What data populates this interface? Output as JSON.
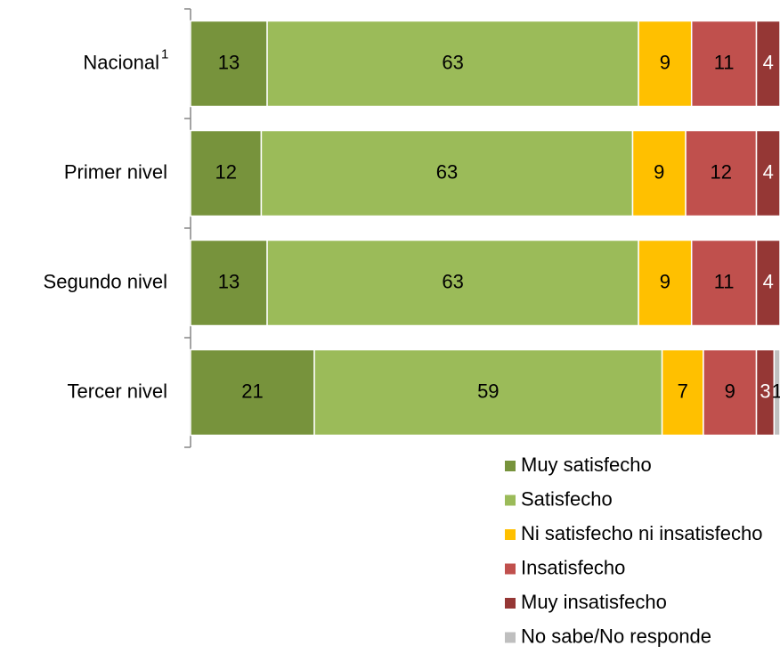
{
  "chart_data": {
    "type": "stacked_barh",
    "categories": [
      "Nacional",
      "Primer nivel",
      "Segundo nivel",
      "Tercer nivel"
    ],
    "category_footnotes": [
      "1",
      null,
      null,
      null
    ],
    "xlim": [
      0,
      100
    ],
    "legend": "bottom",
    "series": [
      {
        "name": "Muy satisfecho",
        "color": "#77933c",
        "label_color": "#000000",
        "values": [
          13,
          12,
          13,
          21
        ]
      },
      {
        "name": "Satisfecho",
        "color": "#9bbb59",
        "label_color": "#000000",
        "values": [
          63,
          63,
          63,
          59
        ]
      },
      {
        "name": "Ni satisfecho ni insatisfecho",
        "color": "#ffc000",
        "label_color": "#000000",
        "values": [
          9,
          9,
          9,
          7
        ]
      },
      {
        "name": "Insatisfecho",
        "color": "#c0504d",
        "label_color": "#000000",
        "values": [
          11,
          12,
          11,
          9
        ]
      },
      {
        "name": "Muy insatisfecho",
        "color": "#953735",
        "label_color": "#ffffff",
        "values": [
          4,
          4,
          4,
          3
        ]
      },
      {
        "name": "No sabe/No responde",
        "color": "#bfbfbf",
        "label_color": "#000000",
        "values": [
          null,
          null,
          null,
          1
        ]
      }
    ]
  }
}
